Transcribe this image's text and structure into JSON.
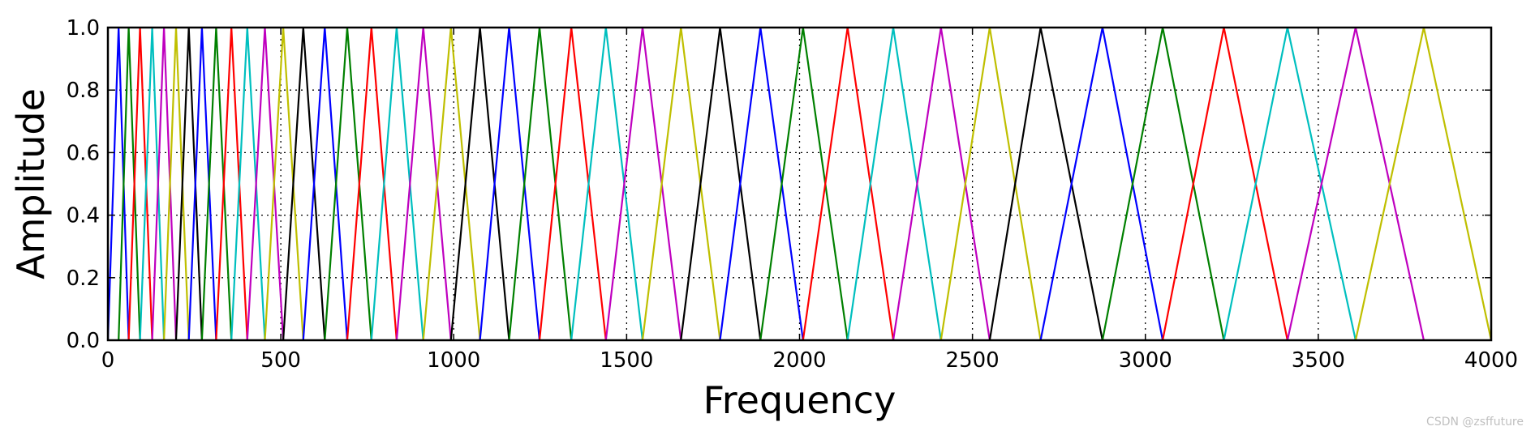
{
  "chart_data": {
    "type": "line",
    "title": "",
    "xlabel": "Frequency",
    "ylabel": "Amplitude",
    "xlim": [
      0,
      4000
    ],
    "ylim": [
      0,
      1
    ],
    "xticks": [
      0,
      500,
      1000,
      1500,
      2000,
      2500,
      3000,
      3500,
      4000
    ],
    "xtick_labels": [
      "0",
      "500",
      "1000",
      "1500",
      "2000",
      "2500",
      "3000",
      "3500",
      "4000"
    ],
    "yticks": [
      0,
      0.2,
      0.4,
      0.6,
      0.8,
      1.0
    ],
    "ytick_labels": [
      "0.0",
      "0.2",
      "0.4",
      "0.6",
      "0.8",
      "1.0"
    ],
    "grid": true,
    "grid_style": "dotted",
    "legend": "none",
    "color_cycle": [
      "#0000ff",
      "#008000",
      "#ff0000",
      "#00bfbf",
      "#bf00bf",
      "#bfbf00",
      "#000000"
    ],
    "filter_edges_hz": [
      0,
      31,
      60,
      93,
      128,
      162,
      197,
      234,
      272,
      313,
      357,
      403,
      454,
      507,
      565,
      627,
      692,
      762,
      835,
      912,
      992,
      1076,
      1160,
      1248,
      1340,
      1440,
      1546,
      1657,
      1770,
      1887,
      2010,
      2139,
      2271,
      2409,
      2550,
      2697,
      2876,
      3050,
      3227,
      3411,
      3608,
      3805,
      4000
    ],
    "series_count": 41,
    "series_description": "Triangular filters: series i rises from edge[i] to peak 1.0 at edge[i+1] and falls back to 0 at edge[i+2]"
  },
  "watermark": "CSDN @zsffuture"
}
